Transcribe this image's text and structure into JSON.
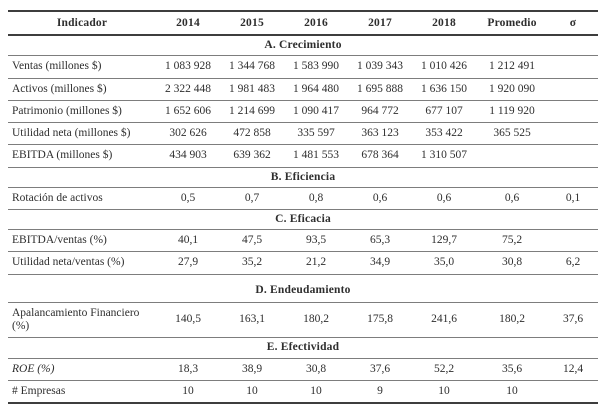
{
  "table": {
    "columns": [
      "Indicador",
      "2014",
      "2015",
      "2016",
      "2017",
      "2018",
      "Promedio",
      "σ"
    ],
    "sections": [
      {
        "title": "A. Crecimiento",
        "rows": [
          {
            "label": "Ventas (millones $)",
            "values": [
              "1 083 928",
              "1 344 768",
              "1 583 990",
              "1 039 343",
              "1 010 426",
              "1 212 491",
              ""
            ]
          },
          {
            "label": "Activos (millones $)",
            "values": [
              "2 322 448",
              "1 981 483",
              "1 964 480",
              "1 695 888",
              "1 636 150",
              "1 920 090",
              ""
            ]
          },
          {
            "label": "Patrimonio (millones $)",
            "values": [
              "1 652 606",
              "1 214 699",
              "1 090 417",
              "964 772",
              "677 107",
              "1 119 920",
              ""
            ]
          },
          {
            "label": "Utilidad neta (millones $)",
            "values": [
              "302 626",
              "472 858",
              "335 597",
              "363 123",
              "353 422",
              "365 525",
              ""
            ]
          },
          {
            "label": "EBITDA (millones $)",
            "values": [
              "434 903",
              "639 362",
              "1 481 553",
              "678 364",
              "1 310 507",
              "",
              ""
            ]
          }
        ]
      },
      {
        "title": "B. Eficiencia",
        "rows": [
          {
            "label": "Rotación de activos",
            "values": [
              "0,5",
              "0,7",
              "0,8",
              "0,6",
              "0,6",
              "0,6",
              "0,1"
            ]
          }
        ]
      },
      {
        "title": "C. Eficacia",
        "rows": [
          {
            "label": "EBITDA/ventas (%)",
            "values": [
              "40,1",
              "47,5",
              "93,5",
              "65,3",
              "129,7",
              "75,2",
              ""
            ]
          },
          {
            "label": "Utilidad neta/ventas (%)",
            "values": [
              "27,9",
              "35,2",
              "21,2",
              "34,9",
              "35,0",
              "30,8",
              "6,2"
            ]
          }
        ]
      },
      {
        "title": "D. Endeudamiento",
        "tall": true,
        "rows": [
          {
            "label": "Apalancamiento Financiero (%)",
            "values": [
              "140,5",
              "163,1",
              "180,2",
              "175,8",
              "241,6",
              "180,2",
              "37,6"
            ]
          }
        ]
      },
      {
        "title": "E. Efectividad",
        "rows": [
          {
            "label": "ROE (%)",
            "italic": true,
            "values": [
              "18,3",
              "38,9",
              "30,8",
              "37,6",
              "52,2",
              "35,6",
              "12,4"
            ]
          },
          {
            "label": "# Empresas",
            "values": [
              "10",
              "10",
              "10",
              "9",
              "10",
              "10",
              ""
            ]
          }
        ]
      }
    ]
  },
  "colors": {
    "text": "#2e2e2e",
    "rule_heavy": "#3d3d3d",
    "rule_light": "#7d7d7d",
    "background": "#ffffff"
  }
}
